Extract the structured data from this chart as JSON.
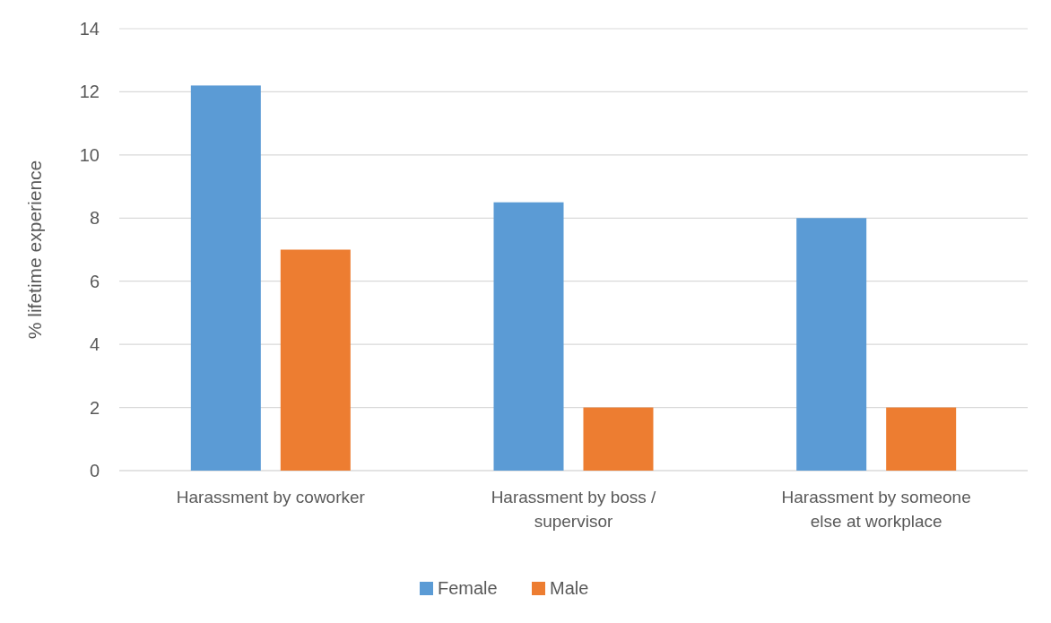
{
  "chart_data": {
    "type": "bar",
    "ylabel": "% lifetime experience",
    "categories": [
      "Harassment by coworker",
      "Harassment by boss / supervisor",
      "Harassment by someone else at workplace"
    ],
    "series": [
      {
        "name": "Female",
        "color": "#5b9bd5",
        "values": [
          12.2,
          8.5,
          8.0
        ]
      },
      {
        "name": "Male",
        "color": "#ed7d31",
        "values": [
          7.0,
          2.0,
          2.0
        ]
      }
    ],
    "ylim": [
      0,
      14
    ],
    "yticks": [
      0,
      2,
      4,
      6,
      8,
      10,
      12,
      14
    ],
    "grid": "y",
    "legend": "bottom"
  }
}
